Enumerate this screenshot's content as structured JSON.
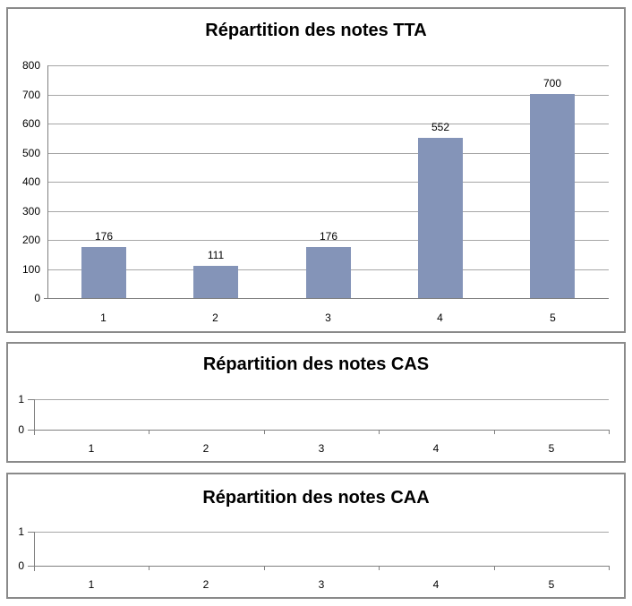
{
  "colors": {
    "bar_fill": "#8494B8",
    "gridline": "#A6A6A6",
    "axis": "#808080",
    "panel_border": "#8A8A8A",
    "text": "#000000",
    "background": "#FFFFFF"
  },
  "chart_data": [
    {
      "type": "bar",
      "title": "Répartition des notes TTA",
      "categories": [
        "1",
        "2",
        "3",
        "4",
        "5"
      ],
      "values": [
        176,
        111,
        176,
        552,
        700
      ],
      "data_labels": [
        "176",
        "111",
        "176",
        "552",
        "700"
      ],
      "xlabel": "",
      "ylabel": "",
      "ylim": [
        0,
        800
      ],
      "yticks": [
        "0",
        "100",
        "200",
        "300",
        "400",
        "500",
        "600",
        "700",
        "800"
      ],
      "grid": true,
      "legend": "none"
    },
    {
      "type": "bar",
      "title": "Répartition des notes CAS",
      "categories": [
        "1",
        "2",
        "3",
        "4",
        "5"
      ],
      "values": [],
      "data_labels": [],
      "xlabel": "",
      "ylabel": "",
      "ylim": [
        0,
        1
      ],
      "yticks": [
        "0",
        "1"
      ],
      "grid": true,
      "legend": "none"
    },
    {
      "type": "bar",
      "title": "Répartition des notes CAA",
      "categories": [
        "1",
        "2",
        "3",
        "4",
        "5"
      ],
      "values": [],
      "data_labels": [],
      "xlabel": "",
      "ylabel": "",
      "ylim": [
        0,
        1
      ],
      "yticks": [
        "0",
        "1"
      ],
      "grid": true,
      "legend": "none"
    }
  ]
}
